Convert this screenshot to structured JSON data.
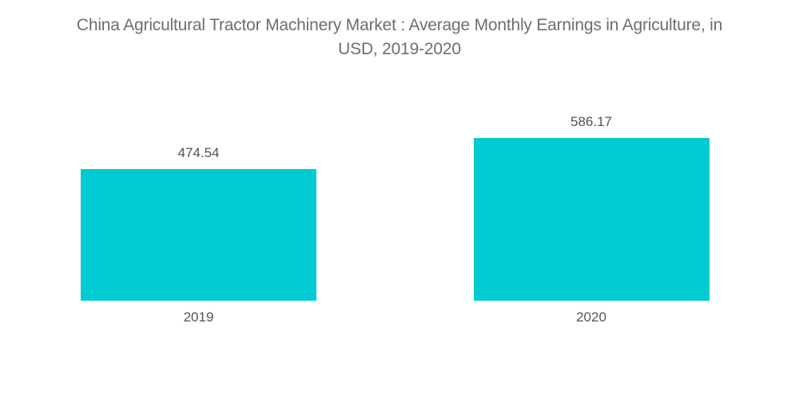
{
  "header": {
    "title_line1": "China Agricultural Tractor Machinery Market : Average Monthly Earnings in Agriculture, in",
    "title_line2": "USD, 2019-2020"
  },
  "colors": {
    "background": "#ffffff",
    "bar": "#00cbd2",
    "title_text": "#6d6e70",
    "label_text": "#515254"
  },
  "chart_data": {
    "type": "bar",
    "title": "China Agricultural Tractor Machinery Market : Average Monthly Earnings in Agriculture, in USD, 2019-2020",
    "categories": [
      "2019",
      "2020"
    ],
    "values": [
      474.54,
      586.17
    ],
    "value_labels": [
      "474.54",
      "586.17"
    ],
    "xlabel": "",
    "ylabel": "",
    "ylim": [
      0,
      650
    ],
    "grid": false,
    "legend": false,
    "axes_visible": false,
    "bar_color": "#00cbd2"
  }
}
